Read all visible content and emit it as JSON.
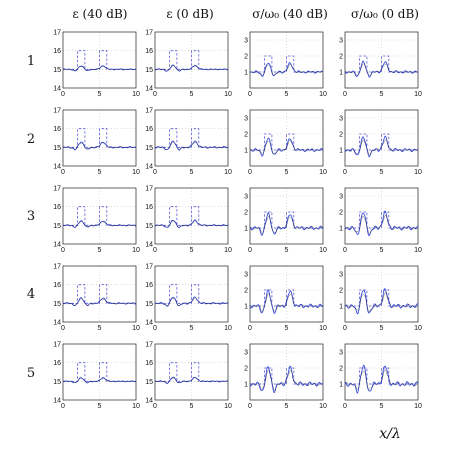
{
  "chart_data": {
    "type": "line",
    "column_titles": [
      "ε (40 dB)",
      "ε (0 dB)",
      "σ/ω₀ (40 dB)",
      "σ/ω₀ (0 dB)"
    ],
    "row_labels": [
      "1",
      "2",
      "3",
      "4",
      "5"
    ],
    "xlabel": "x/λ",
    "x_ticks": [
      "0",
      "5",
      "10"
    ],
    "xlim": [
      0,
      10
    ],
    "panels_eps": {
      "ylim": [
        14,
        17
      ],
      "y_ticks": [
        "14",
        "15",
        "16",
        "17"
      ]
    },
    "panels_sigma": {
      "ylim": [
        0,
        3.5
      ],
      "y_ticks": [
        "1",
        "2",
        "3"
      ]
    },
    "grid": true,
    "series": [
      {
        "role": "true",
        "style": "dashed",
        "eps": {
          "x": [
            0,
            2,
            2,
            3,
            3,
            5,
            5,
            6,
            6,
            10
          ],
          "y": [
            15,
            15,
            16,
            16,
            15,
            15,
            16,
            16,
            15,
            15
          ]
        },
        "sigma": {
          "x": [
            0,
            2,
            2,
            3,
            3,
            5,
            5,
            6,
            6,
            10
          ],
          "y": [
            1,
            1,
            2,
            2,
            1,
            1,
            2,
            2,
            1,
            1
          ]
        }
      },
      {
        "role": "reconstructed",
        "style": "solid",
        "color": "#2a3fd6",
        "eps_bump_height": [
          0.2,
          0.3,
          0.25,
          0.3,
          0.2
        ],
        "sigma_bump_height": [
          0.55,
          0.7,
          0.85,
          0.9,
          1.0
        ]
      }
    ]
  }
}
